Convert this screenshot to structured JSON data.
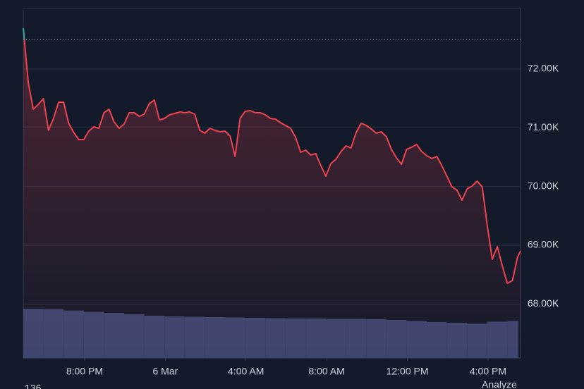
{
  "chart_data": {
    "type": "line",
    "x": [
      0,
      0.25,
      0.5,
      0.75,
      1,
      1.25,
      1.5,
      1.75,
      2,
      2.25,
      2.5,
      2.75,
      3,
      3.25,
      3.5,
      3.75,
      4,
      4.25,
      4.5,
      4.75,
      5,
      5.25,
      5.5,
      5.75,
      6,
      6.25,
      6.5,
      6.75,
      7,
      7.25,
      7.5,
      7.75,
      8,
      8.25,
      8.5,
      8.75,
      9,
      9.25,
      9.5,
      9.75,
      10,
      10.25,
      10.5,
      10.75,
      11,
      11.25,
      11.5,
      11.75,
      12,
      12.25,
      12.5,
      12.75,
      13,
      13.25,
      13.5,
      13.75,
      14,
      14.25,
      14.5,
      14.75,
      15,
      15.25,
      15.5,
      15.75,
      16,
      16.25,
      16.5,
      16.75,
      17,
      17.25,
      17.5,
      17.75,
      18,
      18.25,
      18.5,
      18.75,
      19,
      19.25,
      19.5,
      19.75,
      20,
      20.25,
      20.5,
      20.75,
      21,
      21.25,
      21.5,
      21.75,
      22,
      22.25,
      22.5,
      22.75,
      23,
      23.25,
      23.5,
      23.75,
      24,
      24.25,
      24.5,
      24.65
    ],
    "values": [
      72696,
      71760,
      71316,
      71400,
      71496,
      70956,
      71160,
      71436,
      71436,
      71076,
      70920,
      70800,
      70800,
      70944,
      71016,
      70992,
      71256,
      71316,
      71100,
      70992,
      71064,
      71256,
      71256,
      71196,
      71232,
      71412,
      71472,
      71136,
      71160,
      71220,
      71244,
      71268,
      71256,
      71268,
      71232,
      70956,
      70908,
      70992,
      70956,
      70932,
      70944,
      70860,
      70512,
      71160,
      71280,
      71292,
      71256,
      71256,
      71220,
      71160,
      71148,
      71088,
      71040,
      70992,
      70836,
      70584,
      70620,
      70536,
      70560,
      70356,
      70176,
      70392,
      70464,
      70596,
      70692,
      70656,
      70920,
      71076,
      71040,
      70980,
      70908,
      70932,
      70848,
      70632,
      70488,
      70380,
      70632,
      70668,
      70716,
      70596,
      70524,
      70476,
      70512,
      70356,
      70176,
      69996,
      69936,
      69768,
      69960,
      70008,
      70092,
      69996,
      69336,
      68760,
      68976,
      68640,
      68352,
      68400,
      68796,
      68904
    ],
    "color": "#f0434f",
    "start_color": "#26a69a",
    "reference_line": 72500,
    "xlim": [
      0,
      24.65
    ],
    "xticks": [
      {
        "value": 3.04,
        "label": "8:00 PM"
      },
      {
        "value": 7.04,
        "label": "6 Mar"
      },
      {
        "value": 11.04,
        "label": "4:00 AM"
      },
      {
        "value": 15.04,
        "label": "8:00 AM"
      },
      {
        "value": 19.04,
        "label": "12:00 PM"
      },
      {
        "value": 23.04,
        "label": "4:00 PM"
      }
    ],
    "ylim": [
      67080,
      73032
    ],
    "yticks": [
      {
        "value": 68000,
        "label": "68.00K"
      },
      {
        "value": 69000,
        "label": "69.00K"
      },
      {
        "value": 70000,
        "label": "70.00K"
      },
      {
        "value": 71000,
        "label": "71.00K"
      },
      {
        "value": 72000,
        "label": "72.00K"
      }
    ],
    "grid": true,
    "volume": {
      "axis": "y2",
      "color": "#3d4670",
      "x": [
        0,
        1,
        2,
        3,
        4,
        5,
        6,
        7,
        8,
        9,
        10,
        11,
        12,
        13,
        14,
        15,
        16,
        17,
        18,
        19,
        20,
        21,
        22,
        23,
        24
      ],
      "values": [
        14.1,
        14.0,
        13.6,
        13.2,
        12.9,
        12.5,
        12.1,
        11.9,
        11.8,
        11.7,
        11.6,
        11.5,
        11.4,
        11.3,
        11.3,
        11.2,
        11.2,
        11.1,
        10.9,
        10.6,
        10.3,
        10.1,
        9.8,
        10.4,
        10.6
      ]
    },
    "y2lim": [
      0,
      100
    ],
    "footer_left": "136",
    "footer_right": "Analyze"
  }
}
